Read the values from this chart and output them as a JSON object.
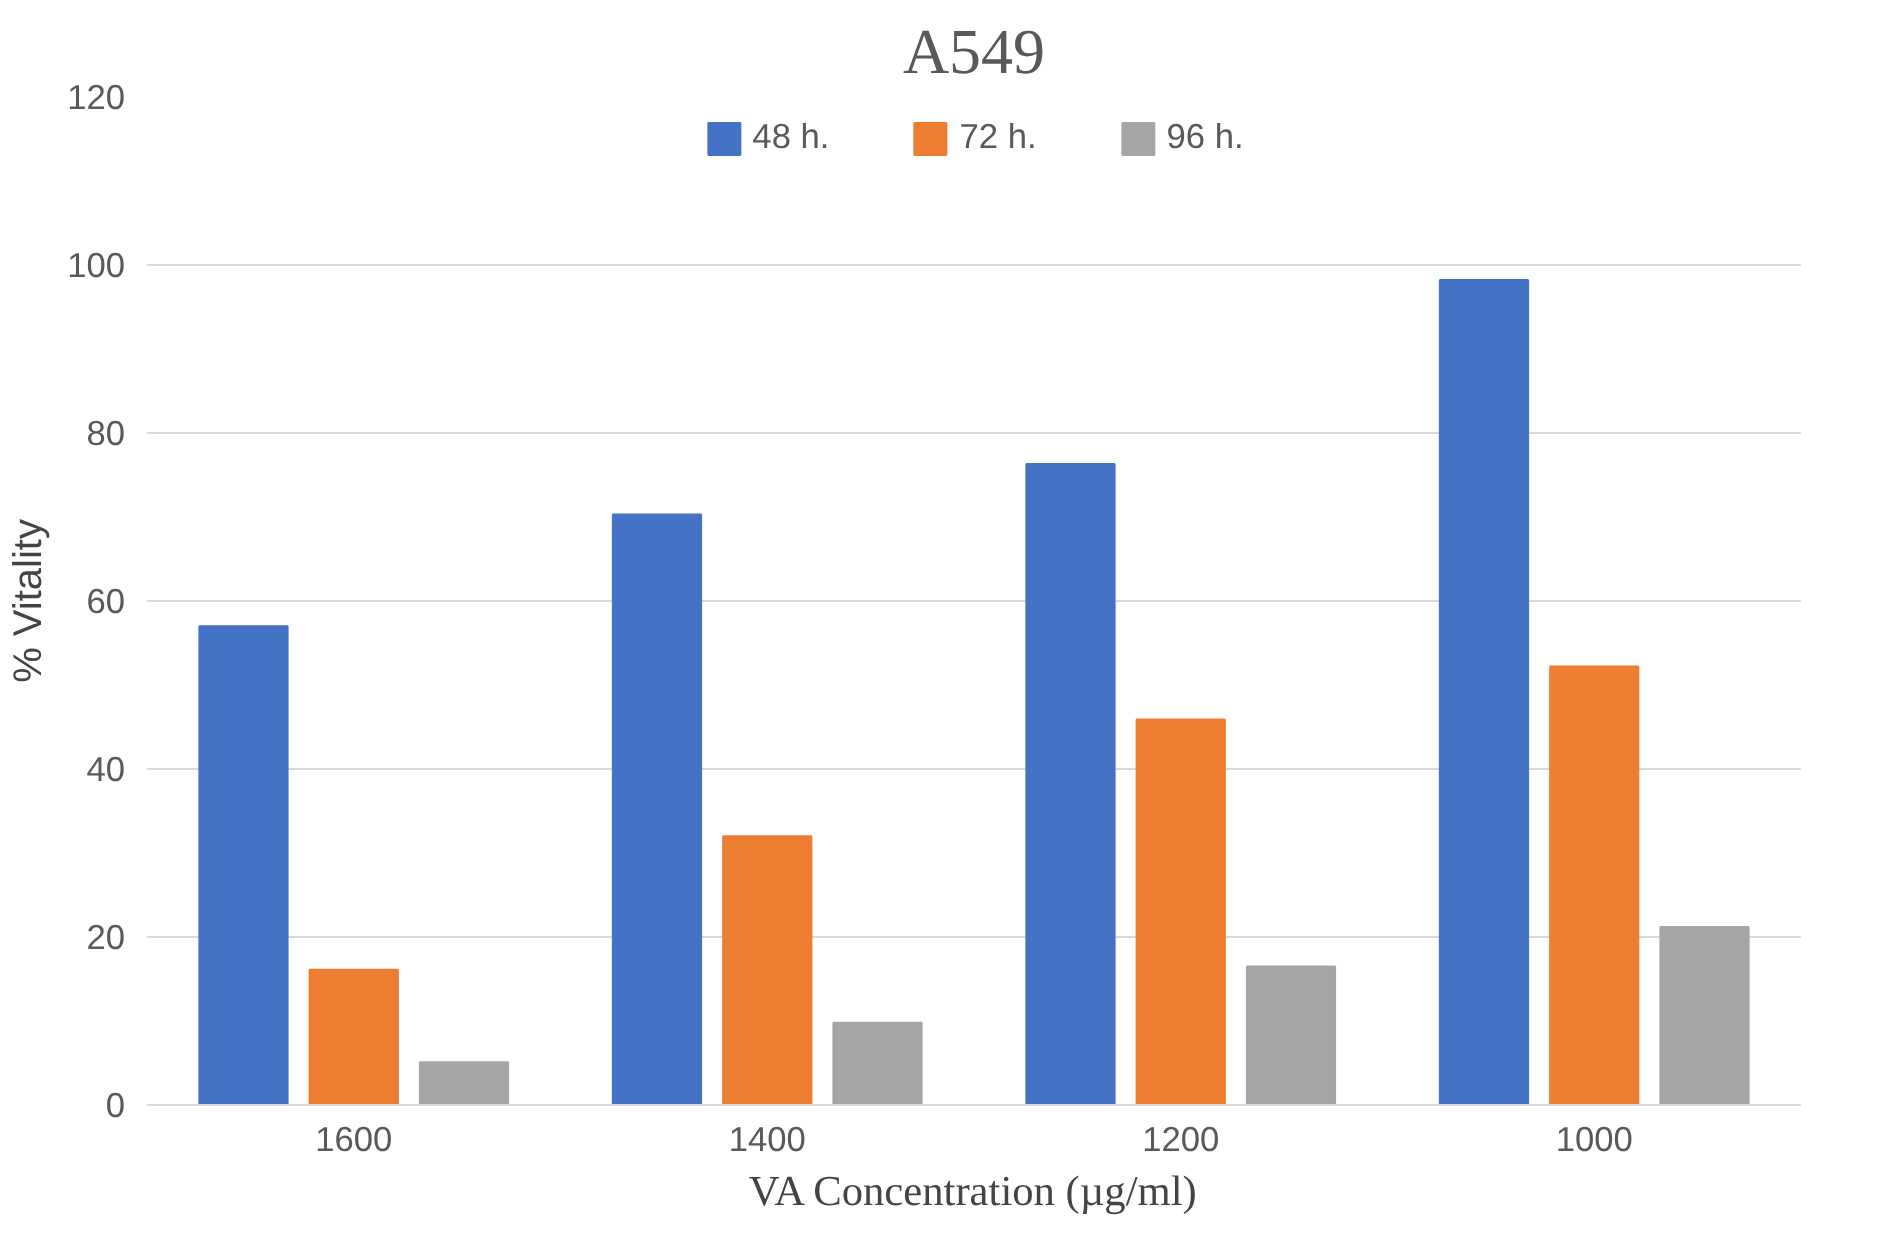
{
  "chart_data": {
    "type": "bar",
    "title": "A549",
    "xlabel": "VA Concentration (µg/ml)",
    "ylabel": "% Vitality",
    "categories": [
      "1600",
      "1400",
      "1200",
      "1000"
    ],
    "series": [
      {
        "name": "48 h.",
        "color": "#4472c4",
        "values": [
          57.0,
          70.3,
          76.3,
          98.2
        ]
      },
      {
        "name": "72 h.",
        "color": "#ed7d31",
        "values": [
          16.1,
          32.0,
          45.9,
          52.2
        ]
      },
      {
        "name": "96 h.",
        "color": "#a5a5a5",
        "values": [
          5.1,
          9.8,
          16.5,
          21.2
        ]
      }
    ],
    "ylim": [
      0,
      120
    ],
    "yticks": [
      0,
      20,
      40,
      60,
      80,
      100,
      120
    ],
    "grid": "y",
    "legend": "top"
  }
}
